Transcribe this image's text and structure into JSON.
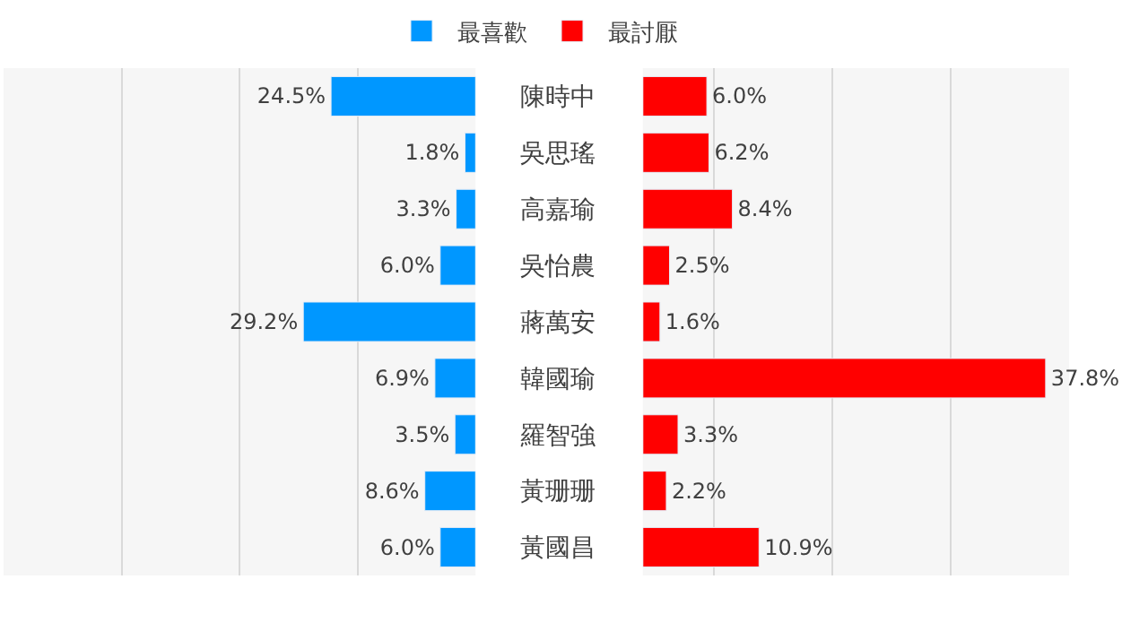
{
  "chart_data": [
    {
      "type": "bar",
      "orientation": "horizontal",
      "categories": [
        "陳時中",
        "吳思瑤",
        "高嘉瑜",
        "吳怡農",
        "蔣萬安",
        "韓國瑜",
        "羅智強",
        "黃珊珊",
        "黃國昌"
      ],
      "series": [
        {
          "name": "最喜歡",
          "color": "#0097ff",
          "values": [
            24.5,
            1.8,
            3.3,
            6.0,
            29.2,
            6.9,
            3.5,
            8.6,
            6.0
          ],
          "value_labels": [
            "24.5%",
            "1.8%",
            "3.3%",
            "6.0%",
            "29.2%",
            "6.9%",
            "3.5%",
            "8.6%",
            "6.0%"
          ]
        }
      ],
      "xlim": [
        80,
        0
      ],
      "xticks": [
        {
          "value": 0,
          "label": null
        },
        {
          "value": 20,
          "label": null
        },
        {
          "value": 40,
          "label": null
        },
        {
          "value": 60,
          "label": null
        },
        {
          "value": 80,
          "label": null
        }
      ],
      "grid": "x",
      "legend": "top",
      "tick_labels": "y"
    },
    {
      "type": "bar",
      "orientation": "horizontal",
      "categories": [
        null,
        null,
        null,
        null,
        null,
        null,
        null,
        null,
        null
      ],
      "series": [
        {
          "name": "最討厭",
          "color": "#ff0000",
          "values": [
            6.0,
            6.2,
            8.4,
            2.5,
            1.6,
            37.8,
            3.3,
            2.2,
            10.9
          ],
          "value_labels": [
            "6.0%",
            "6.2%",
            "8.4%",
            "2.5%",
            "1.6%",
            "37.8%",
            "3.3%",
            "2.2%",
            "10.9%"
          ]
        }
      ],
      "xlim": [
        0,
        40
      ],
      "xticks": [
        {
          "value": 6.7,
          "label": null
        },
        {
          "value": 17.8,
          "label": null
        },
        {
          "value": 28.9,
          "label": null
        },
        {
          "value": 40,
          "label": null
        }
      ],
      "grid": "x",
      "legend": "top",
      "tick_labels": false
    }
  ]
}
